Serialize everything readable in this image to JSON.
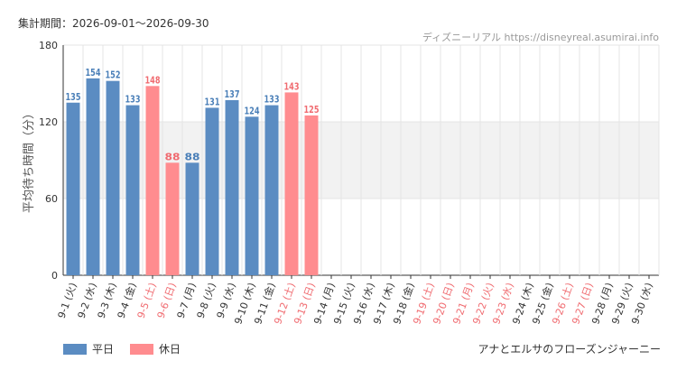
{
  "header": {
    "period_label": "集計期間：2026-09-01～2026-09-30",
    "site_label": "ディズニーリアル https://disneyreal.asumirai.info"
  },
  "footer": {
    "attraction_name": "アナとエルサのフローズンジャーニー"
  },
  "colors": {
    "weekday": "#5b8cc2",
    "holiday": "#ff8c8f",
    "weekday_label": "#4a7fb8",
    "holiday_label": "#f06b70",
    "band": "#f2f2f2",
    "grid": "#e4e4e4"
  },
  "chart_data": {
    "type": "bar",
    "ylabel": "平均待ち時間（分）",
    "ylim": [
      0,
      180
    ],
    "yticks": [
      "0",
      "60",
      "120",
      "180"
    ],
    "shaded_band": [
      60,
      120
    ],
    "legend": [
      {
        "name": "平日",
        "kind": "weekday"
      },
      {
        "name": "休日",
        "kind": "holiday"
      }
    ],
    "categories": [
      "9-1 (火)",
      "9-2 (水)",
      "9-3 (木)",
      "9-4 (金)",
      "9-5 (土)",
      "9-6 (日)",
      "9-7 (月)",
      "9-8 (火)",
      "9-9 (水)",
      "9-10 (木)",
      "9-11 (金)",
      "9-12 (土)",
      "9-13 (日)",
      "9-14 (月)",
      "9-15 (火)",
      "9-16 (水)",
      "9-17 (木)",
      "9-18 (金)",
      "9-19 (土)",
      "9-20 (日)",
      "9-21 (月)",
      "9-22 (火)",
      "9-23 (水)",
      "9-24 (木)",
      "9-25 (金)",
      "9-26 (土)",
      "9-27 (日)",
      "9-28 (月)",
      "9-29 (火)",
      "9-30 (水)"
    ],
    "kinds": [
      "weekday",
      "weekday",
      "weekday",
      "weekday",
      "holiday",
      "holiday",
      "weekday",
      "weekday",
      "weekday",
      "weekday",
      "weekday",
      "holiday",
      "holiday",
      "weekday",
      "weekday",
      "weekday",
      "weekday",
      "weekday",
      "holiday",
      "holiday",
      "holiday",
      "holiday",
      "holiday",
      "weekday",
      "weekday",
      "holiday",
      "holiday",
      "weekday",
      "weekday",
      "weekday"
    ],
    "values": [
      135,
      154,
      152,
      133,
      148,
      88,
      88,
      131,
      137,
      124,
      133,
      143,
      125,
      null,
      null,
      null,
      null,
      null,
      null,
      null,
      null,
      null,
      null,
      null,
      null,
      null,
      null,
      null,
      null,
      null
    ]
  }
}
